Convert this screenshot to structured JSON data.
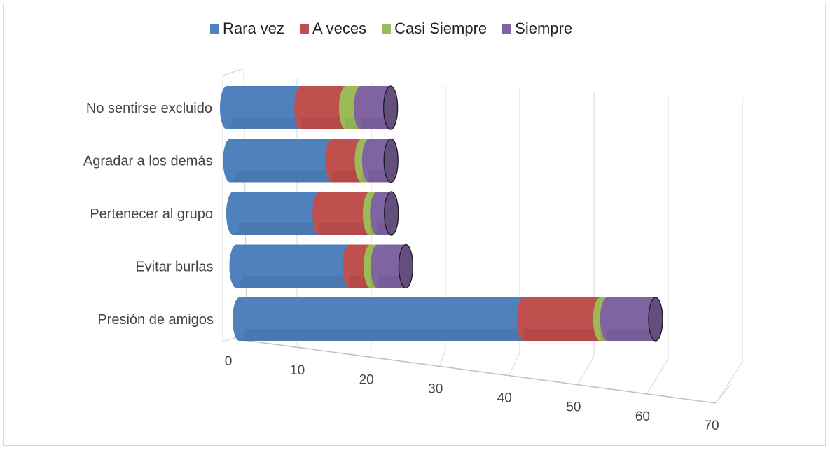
{
  "chart_data": {
    "type": "bar",
    "orientation": "horizontal",
    "stacked": true,
    "style": "3d-cylinder",
    "title": "",
    "categories": [
      "Presión de amigos",
      "Evitar burlas",
      "Pertenecer al grupo",
      "Agradar a los demás",
      "No sentirse excluido"
    ],
    "series": [
      {
        "name": "Rara vez",
        "color": "#4f81bd",
        "values": [
          41,
          16,
          12,
          14,
          10
        ]
      },
      {
        "name": "A veces",
        "color": "#c0504d",
        "values": [
          11,
          3,
          7,
          4,
          6
        ]
      },
      {
        "name": "Casi Siempre",
        "color": "#9bbb59",
        "values": [
          1,
          1,
          1,
          1,
          2
        ]
      },
      {
        "name": "Siempre",
        "color": "#8064a2",
        "values": [
          7,
          4,
          2,
          3,
          4
        ]
      }
    ],
    "xticks": [
      "0",
      "10",
      "20",
      "30",
      "40",
      "50",
      "60",
      "70"
    ],
    "xlim": [
      0,
      70
    ],
    "grid": true,
    "legend_position": "top"
  }
}
